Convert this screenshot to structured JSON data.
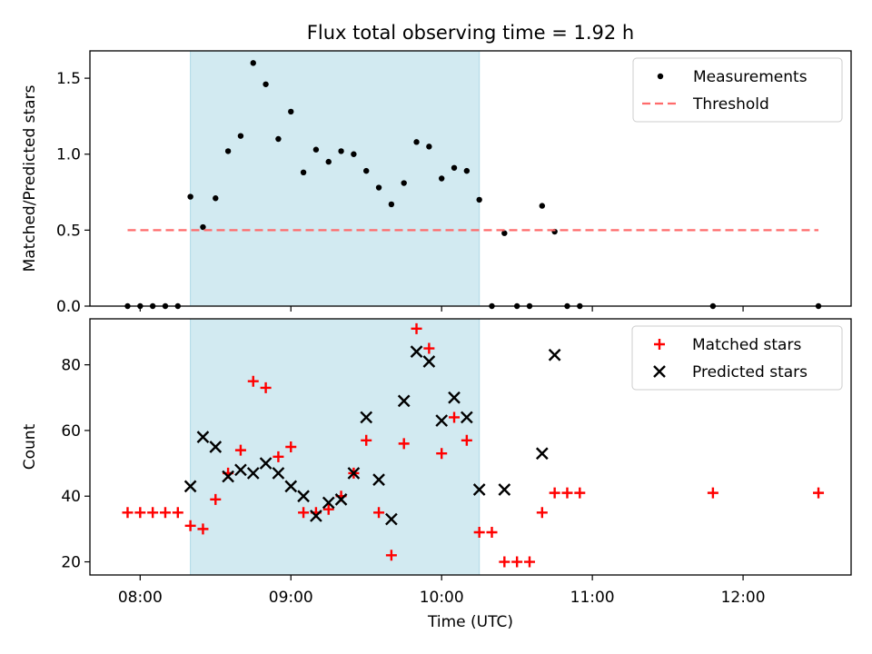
{
  "title": "Flux total observing time = 1.92 h",
  "chart_data": [
    {
      "type": "scatter",
      "panel": "top",
      "ylabel": "Matched/Predicted stars",
      "ylim": [
        0,
        1.68
      ],
      "yticks": [
        0.0,
        0.5,
        1.0,
        1.5
      ],
      "ytick_labels": [
        "0.0",
        "0.5",
        "1.0",
        "1.5"
      ],
      "legend_position": "top-right",
      "grid": false,
      "shaded_interval": [
        "08:20",
        "10:15"
      ],
      "shade_color": "#add8e6",
      "series": [
        {
          "name": "Measurements",
          "marker": "dot",
          "color": "#000000",
          "points": [
            [
              "07:55",
              0.0
            ],
            [
              "08:00",
              0.0
            ],
            [
              "08:05",
              0.0
            ],
            [
              "08:10",
              0.0
            ],
            [
              "08:15",
              0.0
            ],
            [
              "08:20",
              0.72
            ],
            [
              "08:25",
              0.52
            ],
            [
              "08:30",
              0.71
            ],
            [
              "08:35",
              1.02
            ],
            [
              "08:40",
              1.12
            ],
            [
              "08:45",
              1.6
            ],
            [
              "08:50",
              1.46
            ],
            [
              "08:55",
              1.1
            ],
            [
              "09:00",
              1.28
            ],
            [
              "09:05",
              0.88
            ],
            [
              "09:10",
              1.03
            ],
            [
              "09:15",
              0.95
            ],
            [
              "09:20",
              1.02
            ],
            [
              "09:25",
              1.0
            ],
            [
              "09:30",
              0.89
            ],
            [
              "09:35",
              0.78
            ],
            [
              "09:40",
              0.67
            ],
            [
              "09:45",
              0.81
            ],
            [
              "09:50",
              1.08
            ],
            [
              "09:55",
              1.05
            ],
            [
              "10:00",
              0.84
            ],
            [
              "10:05",
              0.91
            ],
            [
              "10:10",
              0.89
            ],
            [
              "10:15",
              0.7
            ],
            [
              "10:20",
              0.0
            ],
            [
              "10:25",
              0.48
            ],
            [
              "10:30",
              0.0
            ],
            [
              "10:35",
              0.0
            ],
            [
              "10:40",
              0.66
            ],
            [
              "10:45",
              0.49
            ],
            [
              "10:50",
              0.0
            ],
            [
              "10:55",
              0.0
            ],
            [
              "11:48",
              0.0
            ],
            [
              "12:30",
              0.0
            ]
          ]
        },
        {
          "name": "Threshold",
          "type": "line",
          "style": "dashed",
          "color": "#ff6b6b",
          "points": [
            [
              "07:55",
              0.5
            ],
            [
              "12:30",
              0.5
            ]
          ]
        }
      ]
    },
    {
      "type": "scatter",
      "panel": "bottom",
      "xlabel": "Time (UTC)",
      "ylabel": "Count",
      "ylim": [
        16,
        94
      ],
      "yticks": [
        20,
        40,
        60,
        80
      ],
      "ytick_labels": [
        "20",
        "40",
        "60",
        "80"
      ],
      "xlim": [
        "07:40",
        "12:43"
      ],
      "xticks": [
        "08:00",
        "09:00",
        "10:00",
        "11:00",
        "12:00"
      ],
      "legend_position": "top-right",
      "grid": false,
      "shaded_interval": [
        "08:20",
        "10:15"
      ],
      "shade_color": "#add8e6",
      "series": [
        {
          "name": "Matched stars",
          "marker": "plus",
          "color": "#ff0000",
          "points": [
            [
              "07:55",
              35
            ],
            [
              "08:00",
              35
            ],
            [
              "08:05",
              35
            ],
            [
              "08:10",
              35
            ],
            [
              "08:15",
              35
            ],
            [
              "08:20",
              31
            ],
            [
              "08:25",
              30
            ],
            [
              "08:30",
              39
            ],
            [
              "08:35",
              47
            ],
            [
              "08:40",
              54
            ],
            [
              "08:45",
              75
            ],
            [
              "08:50",
              73
            ],
            [
              "08:55",
              52
            ],
            [
              "09:00",
              55
            ],
            [
              "09:05",
              35
            ],
            [
              "09:10",
              35
            ],
            [
              "09:15",
              36
            ],
            [
              "09:20",
              40
            ],
            [
              "09:25",
              47
            ],
            [
              "09:30",
              57
            ],
            [
              "09:35",
              35
            ],
            [
              "09:40",
              22
            ],
            [
              "09:45",
              56
            ],
            [
              "09:50",
              91
            ],
            [
              "09:55",
              85
            ],
            [
              "10:00",
              53
            ],
            [
              "10:05",
              64
            ],
            [
              "10:10",
              57
            ],
            [
              "10:15",
              29
            ],
            [
              "10:20",
              29
            ],
            [
              "10:25",
              20
            ],
            [
              "10:30",
              20
            ],
            [
              "10:35",
              20
            ],
            [
              "10:40",
              35
            ],
            [
              "10:45",
              41
            ],
            [
              "10:50",
              41
            ],
            [
              "10:55",
              41
            ],
            [
              "11:48",
              41
            ],
            [
              "12:30",
              41
            ]
          ]
        },
        {
          "name": "Predicted stars",
          "marker": "x",
          "color": "#000000",
          "points": [
            [
              "08:20",
              43
            ],
            [
              "08:25",
              58
            ],
            [
              "08:30",
              55
            ],
            [
              "08:35",
              46
            ],
            [
              "08:40",
              48
            ],
            [
              "08:45",
              47
            ],
            [
              "08:50",
              50
            ],
            [
              "08:55",
              47
            ],
            [
              "09:00",
              43
            ],
            [
              "09:05",
              40
            ],
            [
              "09:10",
              34
            ],
            [
              "09:15",
              38
            ],
            [
              "09:20",
              39
            ],
            [
              "09:25",
              47
            ],
            [
              "09:30",
              64
            ],
            [
              "09:35",
              45
            ],
            [
              "09:40",
              33
            ],
            [
              "09:45",
              69
            ],
            [
              "09:50",
              84
            ],
            [
              "09:55",
              81
            ],
            [
              "10:00",
              63
            ],
            [
              "10:05",
              70
            ],
            [
              "10:10",
              64
            ],
            [
              "10:15",
              42
            ],
            [
              "10:25",
              42
            ],
            [
              "10:40",
              53
            ],
            [
              "10:45",
              83
            ]
          ]
        }
      ]
    }
  ]
}
